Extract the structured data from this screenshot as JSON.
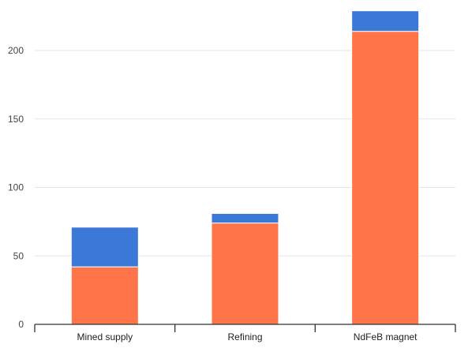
{
  "chart_data": {
    "type": "bar",
    "stacked": true,
    "categories": [
      "Mined supply",
      "Refining",
      "NdFeB magnet"
    ],
    "series": [
      {
        "values": [
          42,
          74,
          214
        ],
        "color": "#ff7448"
      },
      {
        "values": [
          29,
          7,
          15
        ],
        "color": "#3c78d8"
      }
    ],
    "title": "",
    "xlabel": "",
    "ylabel": "",
    "ylim": [
      0,
      230
    ],
    "yticks": [
      0,
      50,
      100,
      150,
      200
    ],
    "grid": true,
    "legend": "none"
  }
}
